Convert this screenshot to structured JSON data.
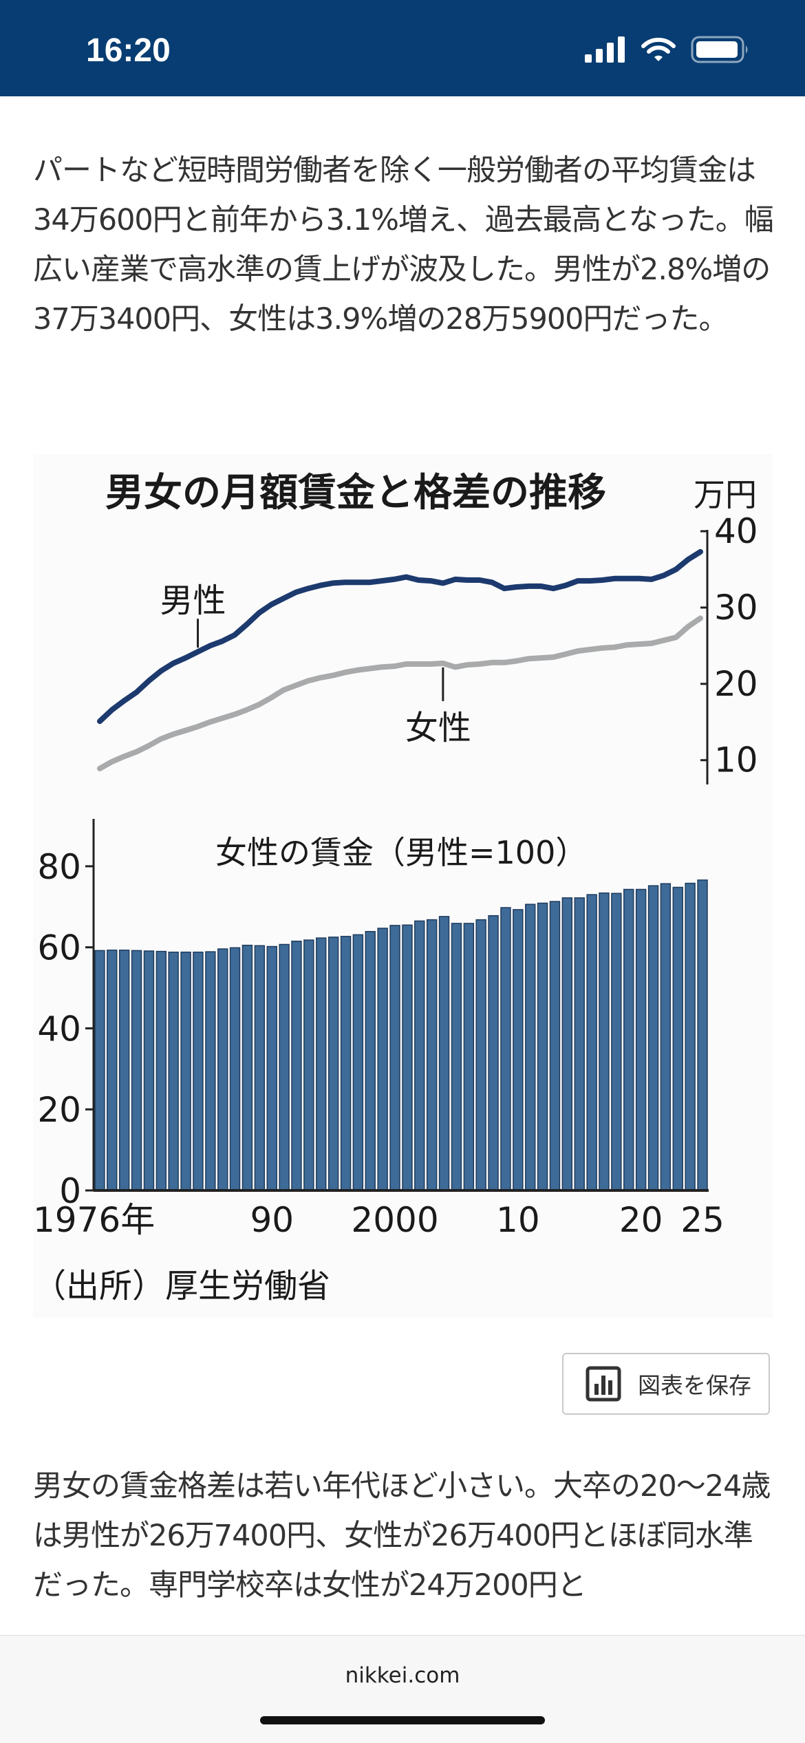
{
  "status_bar": {
    "time": "16:20"
  },
  "article": {
    "para1": "パートなど短時間労働者を除く一般労働者の平均賃金は34万600円と前年から3.1%増え、過去最高となった。幅広い産業で高水準の賃上げが波及した。男性が2.8%増の37万3400円、女性は3.9%増の28万5900円だった。",
    "para2": "男女の賃金格差は若い年代ほど小さい。大卒の20～24歳は男性が26万7400円、女性が26万400円とほぼ同水準だった。専門学校卒は女性が24万200円と"
  },
  "figure": {
    "title": "男女の月額賃金と格差の推移",
    "source": "（出所）厚生労働省",
    "save_button": {
      "label": "図表を保存",
      "icon": "bar-chart-icon"
    }
  },
  "colors": {
    "header": "#073d72",
    "male_line": "#1c3a6e",
    "female_line": "#a8aaab",
    "bar": "#3e6b98"
  },
  "chart_data": [
    {
      "type": "line",
      "title": "男女の月額賃金と格差の推移",
      "ylabel": "万円",
      "ylim": [
        7,
        40
      ],
      "yticks": [
        10,
        20,
        30,
        40
      ],
      "x": [
        1976,
        1977,
        1978,
        1979,
        1980,
        1981,
        1982,
        1983,
        1984,
        1985,
        1986,
        1987,
        1988,
        1989,
        1990,
        1991,
        1992,
        1993,
        1994,
        1995,
        1996,
        1997,
        1998,
        1999,
        2000,
        2001,
        2002,
        2003,
        2004,
        2005,
        2006,
        2007,
        2008,
        2009,
        2010,
        2011,
        2012,
        2013,
        2014,
        2015,
        2016,
        2017,
        2018,
        2019,
        2020,
        2021,
        2022,
        2023,
        2024,
        2025
      ],
      "series": [
        {
          "name": "男性",
          "values": [
            15.1,
            16.6,
            17.8,
            18.9,
            20.4,
            21.7,
            22.7,
            23.4,
            24.2,
            25.0,
            25.6,
            26.4,
            27.8,
            29.3,
            30.4,
            31.2,
            32.0,
            32.5,
            32.9,
            33.2,
            33.3,
            33.3,
            33.3,
            33.5,
            33.7,
            34.0,
            33.6,
            33.5,
            33.2,
            33.7,
            33.6,
            33.6,
            33.3,
            32.5,
            32.7,
            32.8,
            32.8,
            32.5,
            32.9,
            33.5,
            33.5,
            33.6,
            33.8,
            33.8,
            33.8,
            33.7,
            34.2,
            35.0,
            36.3,
            37.3
          ]
        },
        {
          "name": "女性",
          "values": [
            8.9,
            9.8,
            10.5,
            11.1,
            11.9,
            12.8,
            13.4,
            13.9,
            14.4,
            15.0,
            15.5,
            16.0,
            16.6,
            17.3,
            18.2,
            19.2,
            19.8,
            20.4,
            20.8,
            21.1,
            21.5,
            21.8,
            22.0,
            22.2,
            22.3,
            22.6,
            22.6,
            22.6,
            22.7,
            22.2,
            22.5,
            22.6,
            22.8,
            22.8,
            23.0,
            23.3,
            23.4,
            23.5,
            23.9,
            24.3,
            24.5,
            24.7,
            24.8,
            25.1,
            25.2,
            25.3,
            25.7,
            26.1,
            27.5,
            28.6
          ]
        }
      ]
    },
    {
      "type": "bar",
      "title": "女性の賃金（男性=100）",
      "ylim": [
        0,
        90
      ],
      "yticks": [
        0,
        20,
        40,
        60,
        80
      ],
      "xtick_labels": [
        {
          "year": 1976,
          "label": "1976年"
        },
        {
          "year": 1990,
          "label": "90"
        },
        {
          "year": 2000,
          "label": "2000"
        },
        {
          "year": 2010,
          "label": "10"
        },
        {
          "year": 2020,
          "label": "20"
        },
        {
          "year": 2025,
          "label": "25"
        }
      ],
      "categories": [
        1976,
        1977,
        1978,
        1979,
        1980,
        1981,
        1982,
        1983,
        1984,
        1985,
        1986,
        1987,
        1988,
        1989,
        1990,
        1991,
        1992,
        1993,
        1994,
        1995,
        1996,
        1997,
        1998,
        1999,
        2000,
        2001,
        2002,
        2003,
        2004,
        2005,
        2006,
        2007,
        2008,
        2009,
        2010,
        2011,
        2012,
        2013,
        2014,
        2015,
        2016,
        2017,
        2018,
        2019,
        2020,
        2021,
        2022,
        2023,
        2024,
        2025
      ],
      "values": [
        59.2,
        59.3,
        59.3,
        59.2,
        59.1,
        59.0,
        58.8,
        58.8,
        58.8,
        58.9,
        59.6,
        59.9,
        60.5,
        60.4,
        60.2,
        60.7,
        61.5,
        61.8,
        62.3,
        62.5,
        62.7,
        63.1,
        63.9,
        64.7,
        65.4,
        65.5,
        66.5,
        66.8,
        67.6,
        65.9,
        65.9,
        66.8,
        67.8,
        69.8,
        69.3,
        70.6,
        70.9,
        71.3,
        72.2,
        72.2,
        73.0,
        73.4,
        73.3,
        74.3,
        74.3,
        75.2,
        75.7,
        74.8,
        75.8,
        76.6
      ]
    }
  ]
}
